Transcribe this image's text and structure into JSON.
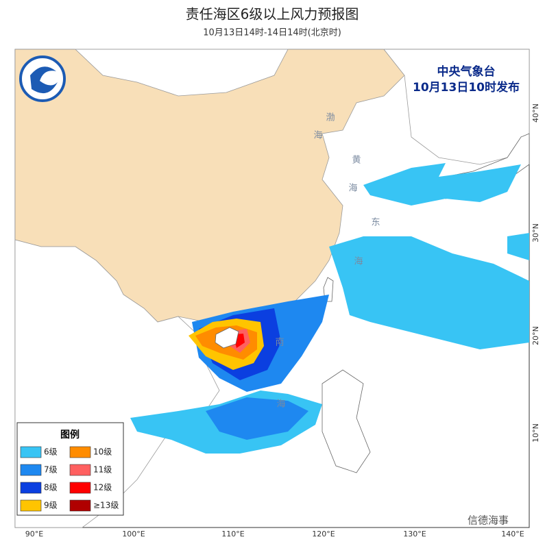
{
  "header": {
    "title": "责任海区6级以上风力预报图",
    "subtitle": "10月13日14时-14日14时(北京时)"
  },
  "issuer": {
    "name": "中央气象台",
    "time": "10月13日10时发布"
  },
  "legend": {
    "title": "图例",
    "items": [
      {
        "label": "6级",
        "color": "#38c4f4"
      },
      {
        "label": "7级",
        "color": "#1e88f0"
      },
      {
        "label": "8级",
        "color": "#0b3fe0"
      },
      {
        "label": "9级",
        "color": "#ffc400"
      },
      {
        "label": "10级",
        "color": "#ff8c00"
      },
      {
        "label": "11级",
        "color": "#ff6060"
      },
      {
        "label": "12级",
        "color": "#ff0000"
      },
      {
        "label": "≥13级",
        "color": "#b00000"
      }
    ]
  },
  "axes": {
    "longitude": [
      "90°E",
      "100°E",
      "110°E",
      "120°E",
      "130°E",
      "140°E"
    ],
    "latitude": [
      "40°N",
      "30°N",
      "20°N",
      "10°N"
    ]
  },
  "sea_labels": [
    "渤",
    "海",
    "黄",
    "海",
    "东",
    "海",
    "南",
    "海"
  ],
  "watermark": "信德海事"
}
